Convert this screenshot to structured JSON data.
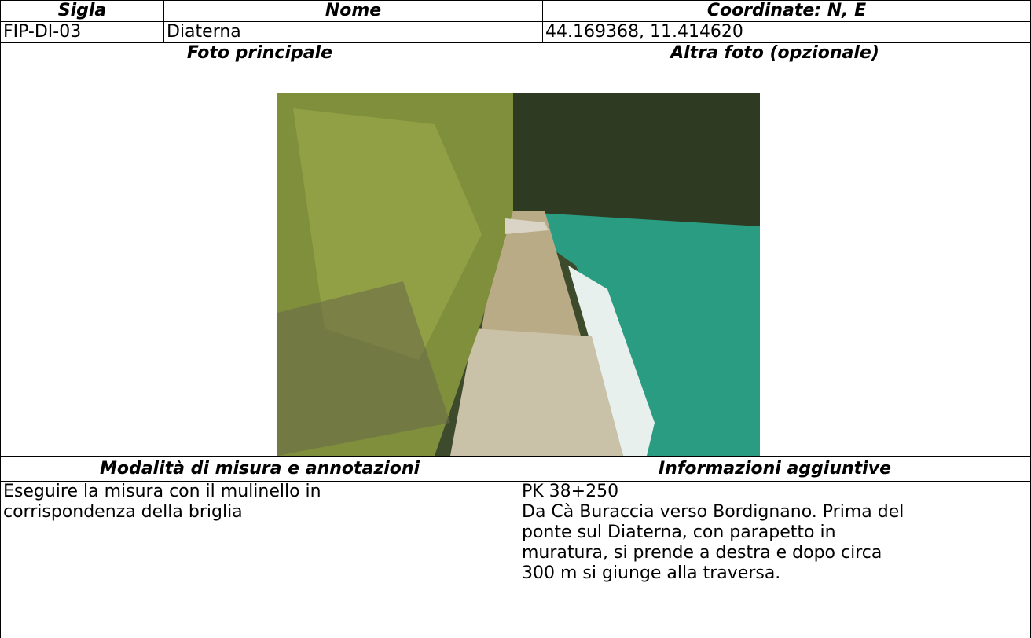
{
  "table": {
    "header": [
      "Sigla",
      "Nome",
      "Coordinate: N, E"
    ],
    "row": [
      "FIP-DI-03",
      "Diaterna",
      "44.169368, 11.414620"
    ],
    "photo_headers": [
      "Foto principale",
      "Altra foto (opzionale)"
    ],
    "notes_headers": [
      "Modalità di misura e annotazioni",
      "Informazioni aggiuntive"
    ],
    "notes": [
      "Eseguire la misura con il mulinello in",
      "corrispondenza della briglia"
    ],
    "info": [
      "PK 38+250",
      "Da Cà Buraccia verso Bordignano. Prima del",
      "ponte sul Diaterna, con parapetto in",
      "muratura, si prende a destra e dopo circa",
      "300 m si giunge alla traversa."
    ]
  }
}
